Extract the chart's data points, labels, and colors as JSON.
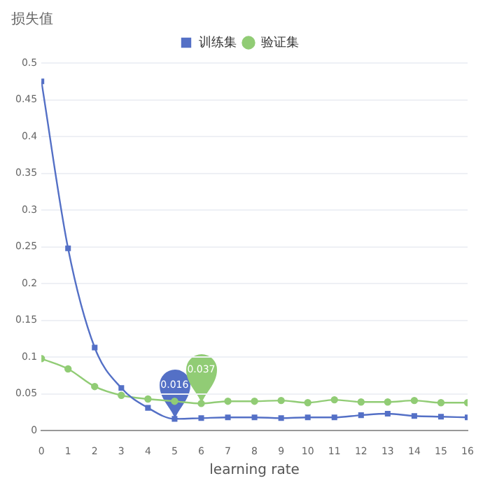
{
  "chart_data": {
    "type": "line",
    "xlabel": "learning rate",
    "ylabel": "损失值",
    "x": [
      0,
      1,
      2,
      3,
      4,
      5,
      6,
      7,
      8,
      9,
      10,
      11,
      12,
      13,
      14,
      15,
      16
    ],
    "series": [
      {
        "name": "训练集",
        "color": "#5470c6",
        "marker": "square",
        "values": [
          0.475,
          0.248,
          0.113,
          0.058,
          0.031,
          0.016,
          0.017,
          0.018,
          0.018,
          0.017,
          0.018,
          0.018,
          0.021,
          0.023,
          0.02,
          0.019,
          0.018
        ]
      },
      {
        "name": "验证集",
        "color": "#91cc75",
        "marker": "circle",
        "values": [
          0.098,
          0.084,
          0.06,
          0.048,
          0.043,
          0.04,
          0.037,
          0.04,
          0.04,
          0.041,
          0.038,
          0.042,
          0.039,
          0.039,
          0.041,
          0.038,
          0.038
        ]
      }
    ],
    "annotations": [
      {
        "text": "0.016",
        "x": 5,
        "y": 0.016
      },
      {
        "text": "0.037",
        "x": 6,
        "y": 0.037
      }
    ],
    "xlim": [
      0,
      16
    ],
    "xticks": [
      0,
      1,
      2,
      3,
      4,
      5,
      6,
      7,
      8,
      9,
      10,
      11,
      12,
      13,
      14,
      15,
      16
    ],
    "ylim": [
      0,
      0.5
    ],
    "yticks": [
      0,
      0.05,
      0.1,
      0.15,
      0.2,
      0.25,
      0.3,
      0.35,
      0.4,
      0.45,
      0.5
    ],
    "grid": "y",
    "legend": "top"
  }
}
